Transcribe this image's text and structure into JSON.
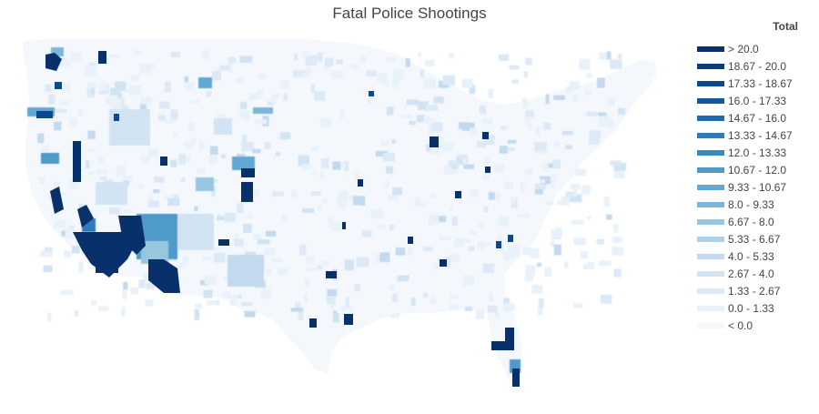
{
  "title": "Fatal Police Shootings",
  "map": {
    "subject": "contiguous United States counties choropleth",
    "colorscale": "Blues"
  },
  "legend": {
    "title": "Total",
    "items": [
      {
        "label": "> 20.0",
        "color": "#08306b"
      },
      {
        "label": "18.67 - 20.0",
        "color": "#083d7f"
      },
      {
        "label": "17.33 - 18.67",
        "color": "#0a4a90"
      },
      {
        "label": "16.0 - 17.33",
        "color": "#1257a1"
      },
      {
        "label": "14.67 - 16.0",
        "color": "#1f6bb1"
      },
      {
        "label": "13.33 - 14.67",
        "color": "#2c7bbb"
      },
      {
        "label": "12.0 - 13.33",
        "color": "#3a8ac2"
      },
      {
        "label": "10.67 - 12.0",
        "color": "#4d9acb"
      },
      {
        "label": "9.33 - 10.67",
        "color": "#62a8d2"
      },
      {
        "label": "8.0 - 9.33",
        "color": "#7cb7da"
      },
      {
        "label": "6.67 - 8.0",
        "color": "#97c6df"
      },
      {
        "label": "5.33 - 6.67",
        "color": "#afd1e7"
      },
      {
        "label": "4.0 - 5.33",
        "color": "#c2d9ee"
      },
      {
        "label": "2.67 - 4.0",
        "color": "#d2e3f3"
      },
      {
        "label": "1.33 - 2.67",
        "color": "#dde9f6"
      },
      {
        "label": "0.0 - 1.33",
        "color": "#e9f2fa"
      },
      {
        "label": "< 0.0",
        "color": "#f4f8fd"
      }
    ]
  }
}
